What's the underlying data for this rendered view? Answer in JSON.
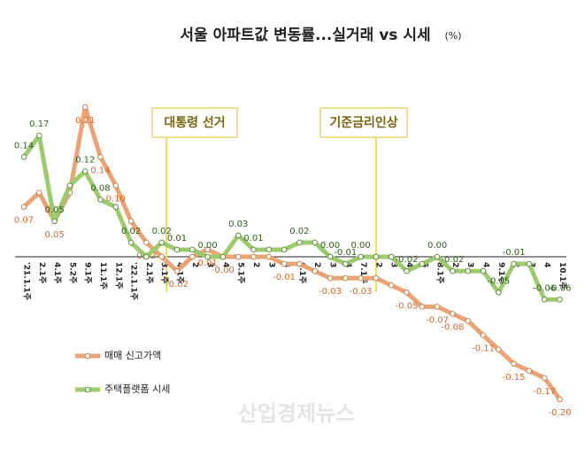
{
  "chart_data": {
    "type": "line",
    "title": "서울 아파트값 변동률...실거래 vs 시세",
    "unit": "(%)",
    "categories": [
      "'21.1.1주",
      "2.1주",
      "4.1주",
      "5.2주",
      "9.1주",
      "11.1주",
      "12.1주",
      "'22.1.1주",
      "2.1주",
      "3.1주",
      "4.1주",
      "2",
      "3",
      "4",
      "5.1주",
      "2",
      "3",
      "4",
      "6.1주",
      "2",
      "3",
      "4",
      "7.1주",
      "2",
      "3",
      "4",
      "5",
      "8.1주",
      "2",
      "3",
      "4",
      "9.1주",
      "2",
      "3",
      "4",
      "10.1주"
    ],
    "series": [
      {
        "name": "매매 신고가액",
        "color": "#eba374",
        "label_color": "#d0672a",
        "values": [
          0.07,
          0.09,
          0.05,
          0.09,
          0.21,
          0.14,
          0.1,
          0.05,
          0.02,
          0.0,
          -0.02,
          0.0,
          0.01,
          0.0,
          0.0,
          0.0,
          0.0,
          -0.01,
          -0.01,
          -0.02,
          -0.03,
          -0.03,
          -0.03,
          -0.03,
          -0.04,
          -0.05,
          -0.07,
          -0.07,
          -0.08,
          -0.09,
          -0.11,
          -0.13,
          -0.15,
          -0.16,
          -0.17,
          -0.2
        ],
        "value_labels": [
          "0.07",
          null,
          "0.05",
          null,
          "0.21",
          "0.14",
          "0.10",
          null,
          "0.02",
          null,
          "-0.02",
          null,
          "0.01",
          "-0.00",
          null,
          null,
          null,
          "-0.01",
          null,
          null,
          "-0.03",
          null,
          "-0.03",
          null,
          null,
          "-0.05",
          null,
          "-0.07",
          "-0.08",
          null,
          "-0.11",
          null,
          "-0.15",
          null,
          "-0.17",
          "-0.20"
        ]
      },
      {
        "name": "주택플랫폼 시세",
        "color": "#9ccb6e",
        "label_color": "#2f5e1e",
        "values": [
          0.14,
          0.17,
          0.05,
          0.1,
          0.12,
          0.08,
          0.07,
          0.02,
          0.0,
          0.02,
          0.01,
          0.01,
          0.0,
          0.0,
          0.03,
          0.01,
          0.01,
          0.01,
          0.02,
          0.02,
          0.0,
          -0.01,
          0.0,
          0.0,
          0.0,
          -0.02,
          -0.01,
          0.0,
          -0.02,
          -0.02,
          -0.02,
          -0.05,
          -0.01,
          -0.01,
          -0.06,
          -0.06
        ],
        "value_labels": [
          "0.14",
          "0.17",
          "0.05",
          null,
          "0.12",
          "0.08",
          null,
          "0.02",
          null,
          "0.02",
          "0.01",
          null,
          "0.00",
          null,
          "0.03",
          "0.01",
          null,
          null,
          "0.02",
          null,
          "0.00",
          "-0.01",
          "0.00",
          null,
          null,
          "-0.02",
          null,
          "0.00",
          "-0.02",
          null,
          null,
          "-0.05",
          "-0.01",
          null,
          "-0.06",
          "-0.06"
        ]
      }
    ],
    "annotations": [
      "대통령 선거",
      "기준금리인상"
    ],
    "watermark": "산업경제뉴스"
  }
}
